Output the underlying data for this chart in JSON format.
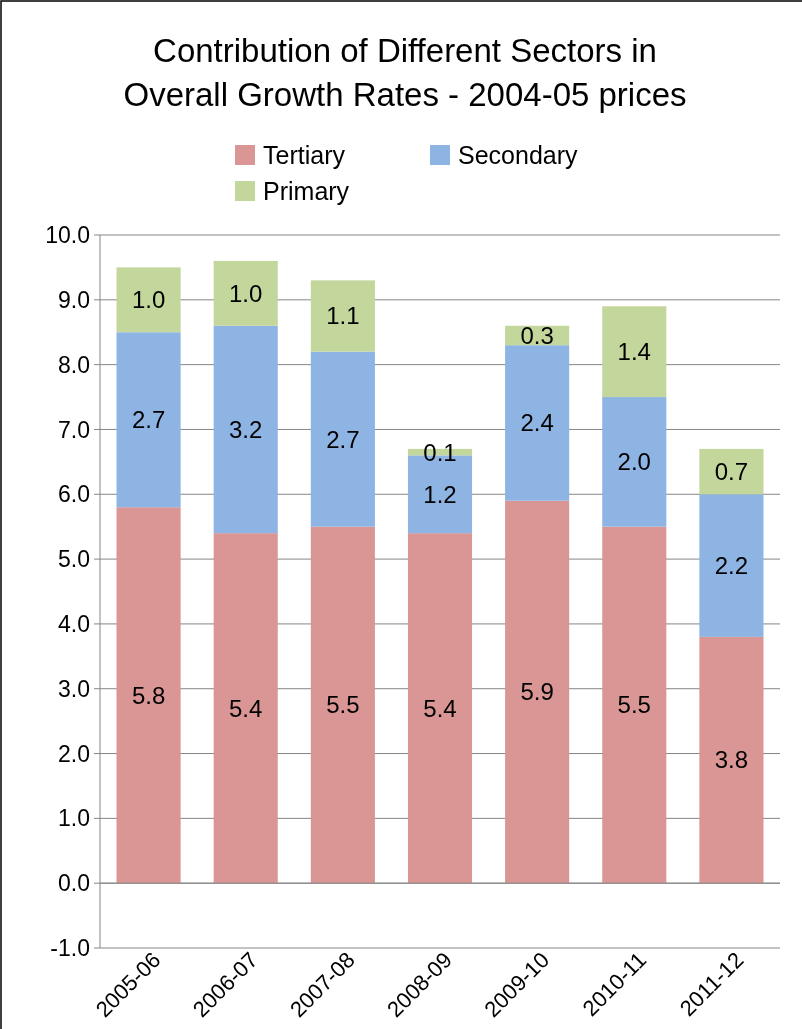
{
  "chart_data": {
    "type": "bar",
    "title": "Contribution of Different Sectors in Overall Growth Rates - 2004-05 prices",
    "categories": [
      "2005-06",
      "2006-07",
      "2007-08",
      "2008-09",
      "2009-10",
      "2010-11",
      "2011-12"
    ],
    "stacked": true,
    "series": [
      {
        "name": "Tertiary",
        "color": "#d99694",
        "values": [
          5.8,
          5.4,
          5.5,
          5.4,
          5.9,
          5.5,
          3.8
        ],
        "value_labels": [
          "5.8",
          "5.4",
          "5.5",
          "5.4",
          "5.9",
          "5.5",
          "3.8"
        ]
      },
      {
        "name": "Secondary",
        "color": "#8eb4e3",
        "values": [
          2.7,
          3.2,
          2.7,
          1.2,
          2.4,
          2.0,
          2.2
        ],
        "value_labels": [
          "2.7",
          "3.2",
          "2.7",
          "1.2",
          "2.4",
          "2.0",
          "2.2"
        ]
      },
      {
        "name": "Primary",
        "color": "#c3d69b",
        "values": [
          1.0,
          1.0,
          1.1,
          0.1,
          0.3,
          1.4,
          0.7
        ],
        "value_labels": [
          "1.0",
          "1.0",
          "1.1",
          "0.1",
          "0.3",
          "1.4",
          "0.7"
        ]
      }
    ],
    "ylim": [
      -1,
      10
    ],
    "yticks": [
      {
        "value": -1,
        "label": "-1.0"
      },
      {
        "value": 0,
        "label": "0.0"
      },
      {
        "value": 1,
        "label": "1.0"
      },
      {
        "value": 2,
        "label": "2.0"
      },
      {
        "value": 3,
        "label": "3.0"
      },
      {
        "value": 4,
        "label": "4.0"
      },
      {
        "value": 5,
        "label": "5.0"
      },
      {
        "value": 6,
        "label": "6.0"
      },
      {
        "value": 7,
        "label": "7.0"
      },
      {
        "value": 8,
        "label": "8.0"
      },
      {
        "value": 9,
        "label": "9.0"
      },
      {
        "value": 10,
        "label": "10.0"
      }
    ],
    "grid": "y",
    "legend": "top"
  }
}
